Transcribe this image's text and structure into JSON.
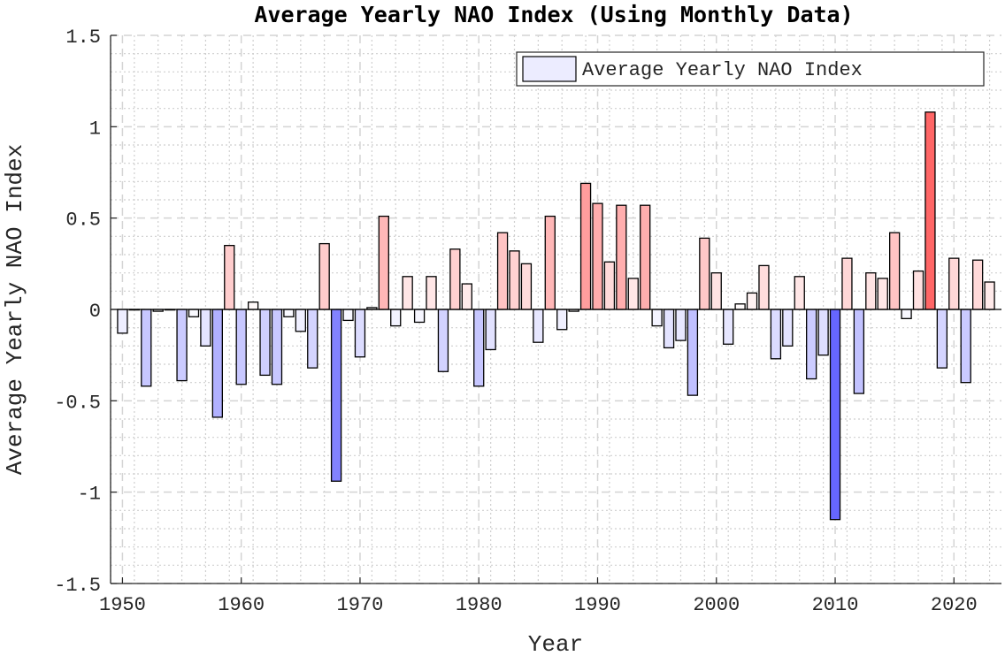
{
  "chart_data": {
    "type": "bar",
    "title": "Average Yearly NAO Index (Using Monthly Data)",
    "xlabel": "Year",
    "ylabel": "Average Yearly NAO Index",
    "xlim": [
      1949,
      2024
    ],
    "ylim": [
      -1.5,
      1.5
    ],
    "xticks": [
      1950,
      1960,
      1970,
      1980,
      1990,
      2000,
      2010,
      2020
    ],
    "yticks": [
      -1.5,
      -1,
      -0.5,
      0,
      0.5,
      1,
      1.5
    ],
    "ytick_labels": [
      "-1.5",
      "-1",
      "-0.5",
      "0",
      "0.5",
      "1",
      "1.5"
    ],
    "grid": true,
    "minor_grid": true,
    "legend": {
      "entry": "Average Yearly NAO Index",
      "placement": "top-right",
      "swatch_color": "#ececff"
    },
    "colormap": {
      "negative_max": "#6666ff",
      "positive_max": "#ff6666",
      "neutral": "#ffffff"
    },
    "series": [
      {
        "name": "Average Yearly NAO Index",
        "x": [
          1950,
          1951,
          1952,
          1953,
          1954,
          1955,
          1956,
          1957,
          1958,
          1959,
          1960,
          1961,
          1962,
          1963,
          1964,
          1965,
          1966,
          1967,
          1968,
          1969,
          1970,
          1971,
          1972,
          1973,
          1974,
          1975,
          1976,
          1977,
          1978,
          1979,
          1980,
          1981,
          1982,
          1983,
          1984,
          1985,
          1986,
          1987,
          1988,
          1989,
          1990,
          1991,
          1992,
          1993,
          1994,
          1995,
          1996,
          1997,
          1998,
          1999,
          2000,
          2001,
          2002,
          2003,
          2004,
          2005,
          2006,
          2007,
          2008,
          2009,
          2010,
          2011,
          2012,
          2013,
          2014,
          2015,
          2016,
          2017,
          2018,
          2019,
          2020,
          2021,
          2022,
          2023
        ],
        "values": [
          -0.13,
          0.0,
          -0.42,
          -0.01,
          0.0,
          -0.39,
          -0.04,
          -0.2,
          -0.59,
          0.35,
          -0.41,
          0.04,
          -0.36,
          -0.41,
          -0.04,
          -0.12,
          -0.32,
          0.36,
          -0.94,
          -0.06,
          -0.26,
          0.01,
          0.51,
          -0.09,
          0.18,
          -0.07,
          0.18,
          -0.34,
          0.33,
          0.14,
          -0.42,
          -0.22,
          0.42,
          0.32,
          0.25,
          -0.18,
          0.51,
          -0.11,
          -0.01,
          0.69,
          0.58,
          0.26,
          0.57,
          0.17,
          0.57,
          -0.09,
          -0.21,
          -0.17,
          -0.47,
          0.39,
          0.2,
          -0.19,
          0.03,
          0.09,
          0.24,
          -0.27,
          -0.2,
          0.18,
          -0.38,
          -0.25,
          -1.15,
          0.28,
          -0.46,
          0.2,
          0.17,
          0.42,
          -0.05,
          0.21,
          1.08,
          -0.32,
          0.28,
          -0.4,
          0.27,
          0.15
        ]
      }
    ]
  }
}
